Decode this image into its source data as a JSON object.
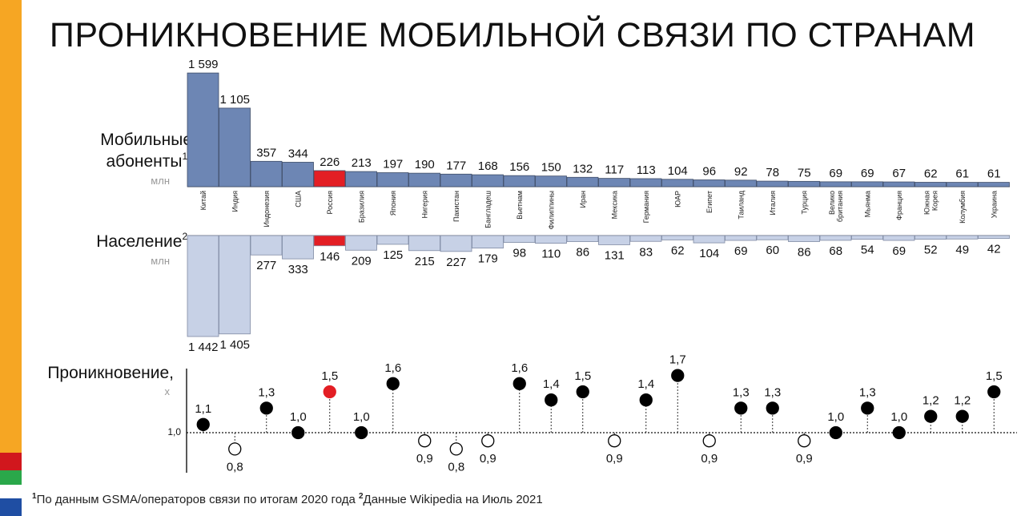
{
  "title": "ПРОНИКНОВЕНИЕ МОБИЛЬНОЙ СВЯЗИ ПО СТРАНАМ",
  "colors": {
    "subscribers_bar": "#6d86b4",
    "population_bar": "#c7d1e6",
    "highlight": "#e31e24",
    "dot": "#000000",
    "side_stripe_top": "#f6a623",
    "side_stripe_red": "#d1171d",
    "side_stripe_green": "#2aa84a",
    "side_stripe_white": "#ffffff",
    "side_stripe_blue": "#1f4ea3"
  },
  "labels": {
    "subscribers_line1": "Мобильные",
    "subscribers_line2": "абоненты",
    "subscribers_sup": "1",
    "subscribers_comma": ",",
    "subscribers_unit": "млн",
    "population": "Население",
    "population_sup": "2",
    "population_comma": ",",
    "population_unit": "млн",
    "penetration": "Проникновение,",
    "penetration_unit": "x",
    "baseline": "1,0"
  },
  "footnote": {
    "sup1": "1",
    "text1": "По данным GSMA/операторов связи по итогам 2020 года ",
    "sup2": "2",
    "text2": "Данные Wikipedia на Июль 2021"
  },
  "chart_data": {
    "type": "bar",
    "highlight_category": "Россия",
    "categories": [
      "Китай",
      "Индия",
      "Индонезия",
      "США",
      "Россия",
      "Бразилия",
      "Япония",
      "Нигерия",
      "Пакистан",
      "Бангладеш",
      "Вьетнам",
      "Филиппины",
      "Иран",
      "Мексика",
      "Германия",
      "ЮАР",
      "Египет",
      "Таиланд",
      "Италия",
      "Турция",
      "Велико британия",
      "Мьянма",
      "Франция",
      "Южная Корея",
      "Колумбия",
      "Украина"
    ],
    "series": [
      {
        "name": "Мобильные абоненты",
        "values": [
          1599,
          1105,
          357,
          344,
          226,
          213,
          197,
          190,
          177,
          168,
          156,
          150,
          132,
          117,
          113,
          104,
          96,
          92,
          78,
          75,
          69,
          69,
          67,
          62,
          61,
          61
        ],
        "value_labels": [
          "1 599",
          "1 105",
          "357",
          "344",
          "226",
          "213",
          "197",
          "190",
          "177",
          "168",
          "156",
          "150",
          "132",
          "117",
          "113",
          "104",
          "96",
          "92",
          "78",
          "75",
          "69",
          "69",
          "67",
          "62",
          "61",
          "61"
        ]
      },
      {
        "name": "Население",
        "values": [
          1442,
          1405,
          277,
          333,
          146,
          209,
          125,
          215,
          227,
          179,
          98,
          110,
          86,
          131,
          83,
          62,
          104,
          69,
          60,
          86,
          68,
          54,
          69,
          52,
          49,
          42
        ],
        "value_labels": [
          "1 442",
          "1 405",
          "277",
          "333",
          "146",
          "209",
          "125",
          "215",
          "227",
          "179",
          "98",
          "110",
          "86",
          "131",
          "83",
          "62",
          "104",
          "69",
          "60",
          "86",
          "68",
          "54",
          "69",
          "52",
          "49",
          "42"
        ]
      },
      {
        "name": "Проникновение",
        "values": [
          1.1,
          0.8,
          1.3,
          1.0,
          1.5,
          1.0,
          1.6,
          0.9,
          0.8,
          0.9,
          1.6,
          1.4,
          1.5,
          0.9,
          1.4,
          1.7,
          0.9,
          1.3,
          1.3,
          0.9,
          1.0,
          1.3,
          1.0,
          1.2,
          1.2,
          1.5
        ],
        "value_labels": [
          "1,1",
          "0,8",
          "1,3",
          "1,0",
          "1,5",
          "1,0",
          "1,6",
          "0,9",
          "0,8",
          "0,9",
          "1,6",
          "1,4",
          "1,5",
          "0,9",
          "1,4",
          "1,7",
          "0,9",
          "1,3",
          "1,3",
          "0,9",
          "1,0",
          "1,3",
          "1,0",
          "1,2",
          "1,2",
          "1,5"
        ]
      }
    ],
    "penetration_baseline": 1.0
  }
}
